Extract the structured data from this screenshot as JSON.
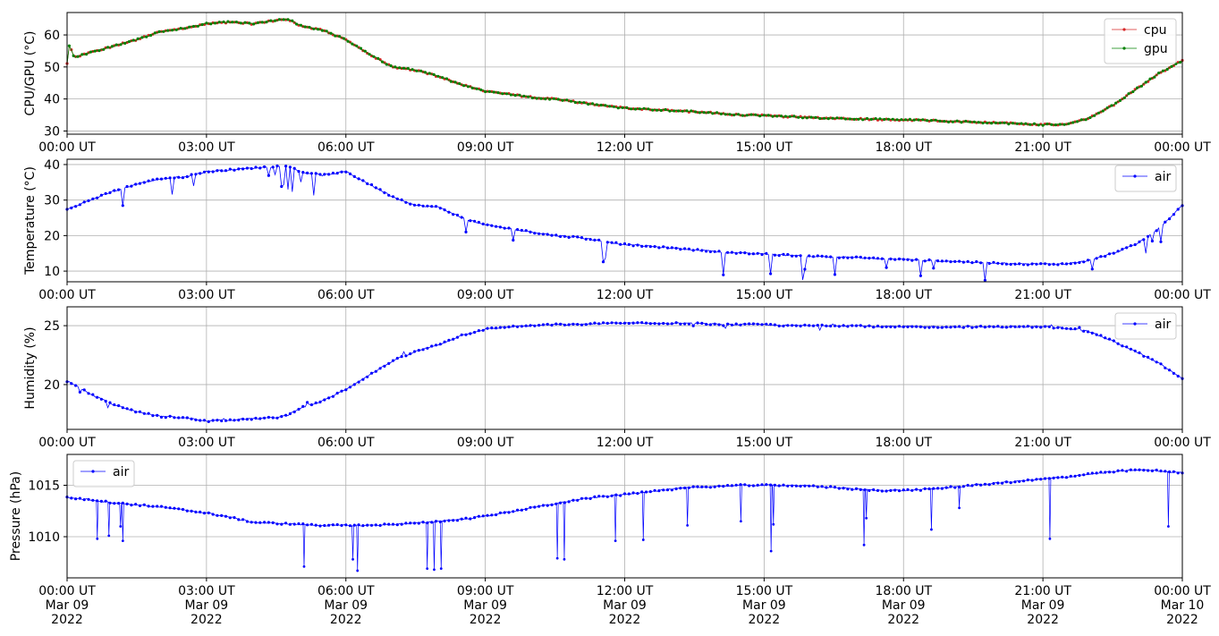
{
  "x_ticks": {
    "times": [
      "00:00 UT",
      "03:00 UT",
      "06:00 UT",
      "09:00 UT",
      "12:00 UT",
      "15:00 UT",
      "18:00 UT",
      "21:00 UT",
      "00:00 UT"
    ],
    "dates": [
      "Mar 09",
      "Mar 09",
      "Mar 09",
      "Mar 09",
      "Mar 09",
      "Mar 09",
      "Mar 09",
      "Mar 09",
      "Mar 10"
    ],
    "years": [
      "2022",
      "2022",
      "2022",
      "2022",
      "2022",
      "2022",
      "2022",
      "2022",
      "2022"
    ]
  },
  "colors": {
    "cpu": "#d62728",
    "gpu": "#008000",
    "air": "#0000ff",
    "grid": "#b0b0b0"
  },
  "chart_data": [
    {
      "type": "line",
      "ylabel": "CPU/GPU (°C)",
      "ylim": [
        29,
        67
      ],
      "yticks": [
        30,
        40,
        50,
        60
      ],
      "xlim_hours": [
        0,
        24
      ],
      "grid": true,
      "legend_loc": "upper right",
      "series": [
        {
          "name": "cpu",
          "x_hours": [
            0,
            0.05,
            0.15,
            0.5,
            1,
            1.5,
            2,
            2.5,
            3,
            3.5,
            4,
            4.5,
            4.75,
            5,
            5.5,
            6,
            6.5,
            7,
            7.5,
            8,
            8.5,
            9,
            9.5,
            10,
            10.5,
            11,
            11.5,
            12,
            12.5,
            13,
            13.5,
            14,
            14.5,
            15,
            15.5,
            16,
            16.5,
            17,
            17.5,
            18,
            18.5,
            19,
            19.5,
            20,
            20.5,
            21,
            21.5,
            22,
            22.5,
            23,
            23.5,
            24
          ],
          "values": [
            51,
            57,
            53,
            54.5,
            56.5,
            58.5,
            61,
            62,
            63.5,
            64,
            63.5,
            64.5,
            65,
            63,
            61.5,
            58.5,
            54,
            50,
            49,
            47,
            44.5,
            42.5,
            41.5,
            40.5,
            40,
            39,
            38,
            37.2,
            36.8,
            36.4,
            36,
            35.5,
            35,
            34.8,
            34.5,
            34.2,
            34,
            33.8,
            33.6,
            33.5,
            33.3,
            33,
            32.8,
            32.5,
            32.3,
            32,
            32,
            34,
            38,
            43,
            48,
            52
          ]
        },
        {
          "name": "gpu",
          "x_hours": [
            0,
            0.05,
            0.15,
            0.5,
            1,
            1.5,
            2,
            2.5,
            3,
            3.5,
            4,
            4.5,
            4.75,
            5,
            5.5,
            6,
            6.5,
            7,
            7.5,
            8,
            8.5,
            9,
            9.5,
            10,
            10.5,
            11,
            11.5,
            12,
            12.5,
            13,
            13.5,
            14,
            14.5,
            15,
            15.5,
            16,
            16.5,
            17,
            17.5,
            18,
            18.5,
            19,
            19.5,
            20,
            20.5,
            21,
            21.5,
            22,
            22.5,
            23,
            23.5,
            24
          ],
          "values": [
            51,
            57,
            53,
            54.5,
            56.5,
            58.5,
            61,
            62,
            63.5,
            64,
            63.5,
            64.5,
            65,
            63,
            61.5,
            58.5,
            54,
            50,
            49,
            47,
            44.5,
            42.5,
            41.5,
            40.5,
            40,
            39,
            38,
            37.2,
            36.8,
            36.4,
            36,
            35.5,
            35,
            34.8,
            34.5,
            34.2,
            34,
            33.8,
            33.6,
            33.5,
            33.3,
            33,
            32.8,
            32.5,
            32.3,
            32,
            32,
            34,
            38,
            43,
            48,
            52
          ]
        }
      ]
    },
    {
      "type": "line",
      "ylabel": "Temperature (°C)",
      "ylim": [
        7,
        41.5
      ],
      "yticks": [
        10,
        20,
        30,
        40
      ],
      "xlim_hours": [
        0,
        24
      ],
      "grid": true,
      "legend_loc": "upper right",
      "series": [
        {
          "name": "air",
          "x_hours": [
            0,
            0.5,
            1,
            1.5,
            2,
            2.5,
            3,
            3.5,
            4,
            4.5,
            4.75,
            5,
            5.5,
            6,
            6.5,
            7,
            7.5,
            8,
            8.5,
            9,
            9.5,
            10,
            10.5,
            11,
            11.5,
            12,
            12.5,
            13,
            13.5,
            14,
            14.5,
            15,
            15.5,
            16,
            16.5,
            17,
            17.5,
            18,
            18.5,
            19,
            19.5,
            20,
            20.5,
            21,
            21.5,
            22,
            22.5,
            23,
            23.5,
            24
          ],
          "values": [
            27.5,
            30,
            32.5,
            34.5,
            36,
            36.5,
            38,
            38.5,
            39,
            39.5,
            39.8,
            38,
            37,
            38,
            34.5,
            31,
            28.5,
            28,
            25,
            23,
            22,
            21,
            20,
            19.5,
            18.5,
            17.5,
            17,
            16.5,
            16,
            15.5,
            15,
            14.8,
            14.5,
            14.2,
            14,
            13.8,
            13.5,
            13.3,
            13,
            12.8,
            12.5,
            12.3,
            12,
            12,
            12,
            13,
            15,
            17.5,
            22,
            28.5
          ]
        }
      ]
    },
    {
      "type": "line",
      "ylabel": "Humidity (%)",
      "ylim": [
        16.2,
        26.6
      ],
      "yticks": [
        20,
        25
      ],
      "xlim_hours": [
        0,
        24
      ],
      "grid": true,
      "legend_loc": "upper right",
      "series": [
        {
          "name": "air",
          "x_hours": [
            0,
            0.5,
            1,
            1.5,
            2,
            2.5,
            3,
            3.5,
            4,
            4.5,
            4.75,
            5,
            5.5,
            6,
            6.5,
            7,
            7.5,
            8,
            8.5,
            9,
            9.5,
            10,
            10.5,
            11,
            11.5,
            12,
            12.5,
            13,
            13.5,
            14,
            14.5,
            15,
            15.5,
            16,
            16.5,
            17,
            17.5,
            18,
            18.5,
            19,
            19.5,
            20,
            20.5,
            21,
            21.5,
            22,
            22.5,
            23,
            23.5,
            24
          ],
          "values": [
            20.3,
            19.2,
            18.3,
            17.7,
            17.3,
            17.2,
            16.9,
            17,
            17.1,
            17.2,
            17.4,
            18,
            18.6,
            19.6,
            20.8,
            22,
            22.8,
            23.4,
            24.2,
            24.7,
            24.9,
            25,
            25.1,
            25.1,
            25.2,
            25.2,
            25.2,
            25.2,
            25.2,
            25.1,
            25.1,
            25.1,
            25,
            25,
            25,
            25,
            24.9,
            24.9,
            24.9,
            24.9,
            24.9,
            24.9,
            24.9,
            24.9,
            24.8,
            24.5,
            23.7,
            22.8,
            21.8,
            20.5
          ]
        }
      ]
    },
    {
      "type": "line",
      "ylabel": "Pressure (hPa)",
      "ylim": [
        1006,
        1018
      ],
      "yticks": [
        1010,
        1015
      ],
      "xlim_hours": [
        0,
        24
      ],
      "grid": true,
      "legend_loc": "upper left",
      "series": [
        {
          "name": "air",
          "x_hours": [
            0,
            0.5,
            1,
            1.5,
            2,
            2.5,
            3,
            3.5,
            4,
            4.5,
            5,
            5.5,
            6,
            6.5,
            7,
            7.5,
            8,
            8.5,
            9,
            9.5,
            10,
            10.5,
            11,
            11.5,
            12,
            12.5,
            13,
            13.5,
            14,
            14.5,
            15,
            15.5,
            16,
            16.5,
            17,
            17.5,
            18,
            18.5,
            19,
            19.5,
            20,
            20.5,
            21,
            21.5,
            22,
            22.5,
            23,
            23.5,
            24
          ],
          "values": [
            1013.8,
            1013.6,
            1013.3,
            1013.1,
            1012.9,
            1012.6,
            1012.3,
            1011.9,
            1011.4,
            1011.3,
            1011.2,
            1011.1,
            1011.1,
            1011.1,
            1011.2,
            1011.3,
            1011.5,
            1011.7,
            1012,
            1012.4,
            1012.8,
            1013.2,
            1013.6,
            1013.9,
            1014.1,
            1014.4,
            1014.6,
            1014.8,
            1014.9,
            1015,
            1015,
            1015,
            1014.9,
            1014.8,
            1014.6,
            1014.5,
            1014.5,
            1014.6,
            1014.8,
            1015,
            1015.2,
            1015.4,
            1015.6,
            1015.8,
            1016.1,
            1016.3,
            1016.5,
            1016.4,
            1016.2
          ],
          "outliers_x": [
            0.65,
            0.9,
            1.15,
            1.2,
            5.1,
            6.15,
            6.25,
            7.75,
            7.9,
            8.05,
            10.55,
            10.7,
            11.8,
            12.4,
            13.35,
            14.5,
            15.15,
            15.2,
            17.15,
            17.2,
            18.6,
            19.2,
            21.15,
            23.7
          ],
          "outliers_y": [
            1009.8,
            1010.1,
            1011,
            1009.6,
            1007.1,
            1007.8,
            1006.7,
            1006.9,
            1006.8,
            1006.9,
            1007.9,
            1007.8,
            1009.6,
            1009.7,
            1011.1,
            1011.5,
            1008.6,
            1011.2,
            1009.2,
            1011.8,
            1010.7,
            1012.8,
            1009.8,
            1011
          ]
        }
      ]
    }
  ]
}
